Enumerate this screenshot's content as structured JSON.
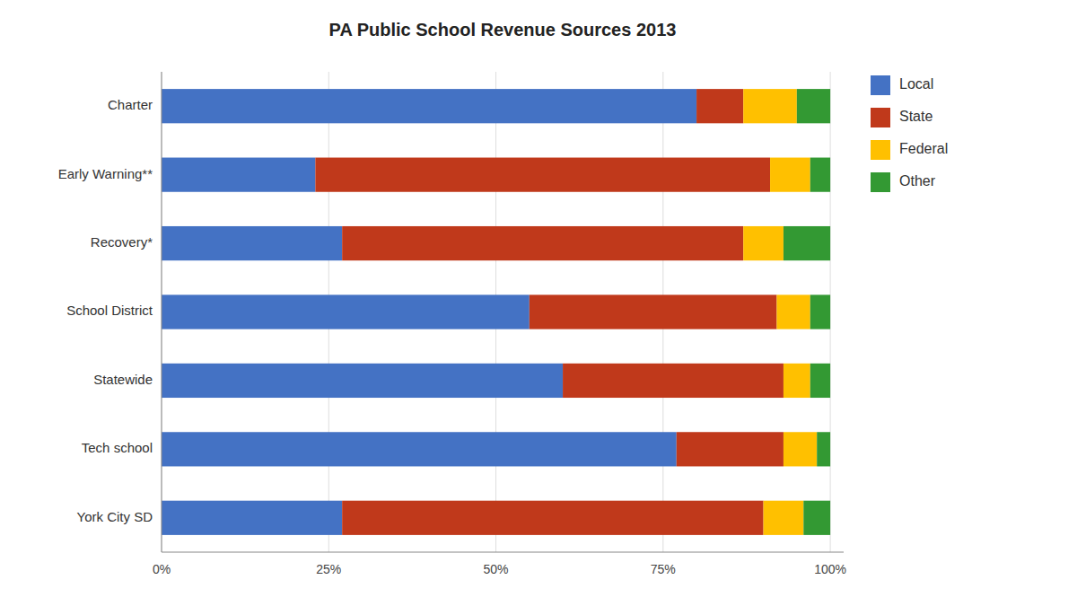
{
  "chart_data": {
    "type": "bar",
    "orientation": "horizontal",
    "stacked": true,
    "title": "PA Public School Revenue Sources 2013",
    "categories": [
      "Charter",
      "Early Warning**",
      "Recovery*",
      "School District",
      "Statewide",
      "Tech school",
      "York City SD"
    ],
    "series": [
      {
        "name": "Local",
        "color": "#4472C4",
        "values": [
          80,
          23,
          27,
          55,
          60,
          77,
          27
        ]
      },
      {
        "name": "State",
        "color": "#C0391B",
        "values": [
          7,
          68,
          60,
          37,
          33,
          16,
          63
        ]
      },
      {
        "name": "Federal",
        "color": "#FFC000",
        "values": [
          8,
          6,
          6,
          5,
          4,
          5,
          6
        ]
      },
      {
        "name": "Other",
        "color": "#339933",
        "values": [
          5,
          3,
          7,
          3,
          3,
          2,
          4
        ]
      }
    ],
    "xlim": [
      0,
      102
    ],
    "xticks": [
      {
        "value": 0,
        "label": "0%"
      },
      {
        "value": 25,
        "label": "25%"
      },
      {
        "value": 50,
        "label": "50%"
      },
      {
        "value": 75,
        "label": "75%"
      },
      {
        "value": 100,
        "label": "100%"
      }
    ],
    "grid": true,
    "legend": "right"
  }
}
